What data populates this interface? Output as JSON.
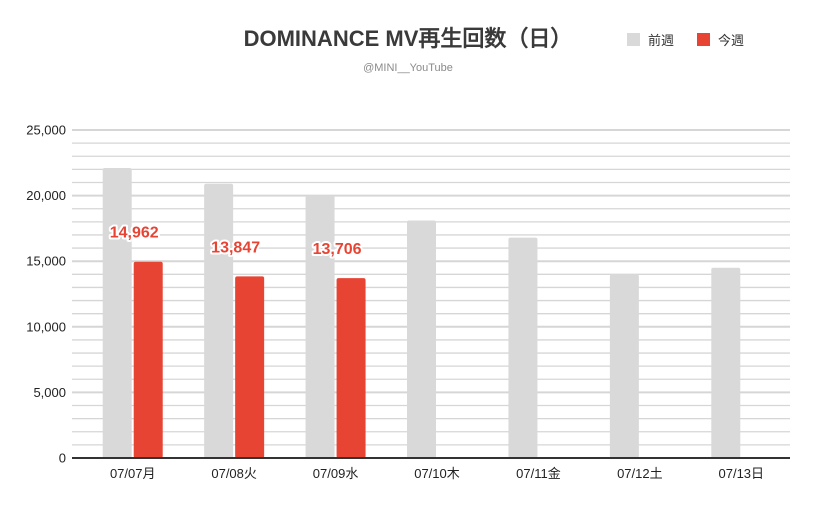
{
  "chart_data": {
    "type": "bar",
    "title": "DOMINANCE MV再生回数（日）",
    "subtitle": "@MINI__YouTube",
    "categories": [
      "07/07月",
      "07/08火",
      "07/09水",
      "07/10木",
      "07/11金",
      "07/12土",
      "07/13日"
    ],
    "series": [
      {
        "name": "前週",
        "color": "#d9d9d9",
        "values": [
          22100,
          20900,
          20000,
          18100,
          16800,
          14000,
          14500
        ]
      },
      {
        "name": "今週",
        "color": "#e84434",
        "values": [
          14962,
          13847,
          13706,
          null,
          null,
          null,
          null
        ]
      }
    ],
    "data_labels": [
      {
        "series": 1,
        "index": 0,
        "text": "14,962"
      },
      {
        "series": 1,
        "index": 1,
        "text": "13,847"
      },
      {
        "series": 1,
        "index": 2,
        "text": "13,706"
      }
    ],
    "ylim": [
      0,
      25000
    ],
    "yticks": [
      0,
      5000,
      10000,
      15000,
      20000,
      25000
    ],
    "ytick_labels": [
      "0",
      "5,000",
      "10,000",
      "15,000",
      "20,000",
      "25,000"
    ],
    "grid": true,
    "minor_grid": 1000,
    "legend": "top-right",
    "data_label_color": "#e84434",
    "axis_color": "#333333",
    "grid_color": "#d6d6d6"
  }
}
